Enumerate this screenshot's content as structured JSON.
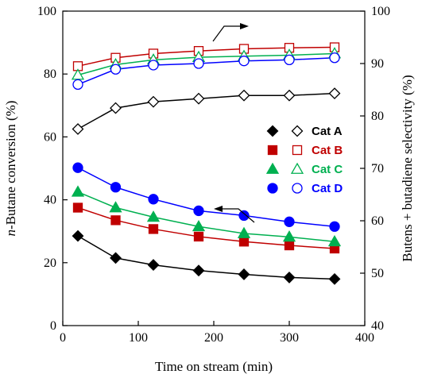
{
  "chart_data": {
    "type": "line",
    "x_axis": {
      "label": "Time on stream (min)",
      "range": [
        0,
        400
      ],
      "ticks": [
        0,
        100,
        200,
        300,
        400
      ]
    },
    "y_left_axis": {
      "label_italic_prefix": "n",
      "label_rest": "-Butane conversion (%)",
      "range": [
        0,
        100
      ],
      "ticks": [
        0,
        20,
        40,
        60,
        80,
        100
      ]
    },
    "y_right_axis": {
      "label": "Butens + butadiene selectivity (%)",
      "range": [
        40,
        100
      ],
      "ticks": [
        40,
        50,
        60,
        70,
        80,
        90,
        100
      ]
    },
    "x": [
      20,
      70,
      120,
      180,
      240,
      300,
      360
    ],
    "conversion_series": [
      {
        "name": "Cat A",
        "color": "#000000",
        "marker": "diamond",
        "values": [
          28.5,
          21.5,
          19.3,
          17.5,
          16.3,
          15.3,
          14.8
        ]
      },
      {
        "name": "Cat B",
        "color": "#c00000",
        "marker": "square",
        "values": [
          37.5,
          33.5,
          30.7,
          28.3,
          26.7,
          25.5,
          24.5
        ]
      },
      {
        "name": "Cat C",
        "color": "#00b050",
        "marker": "triangle",
        "values": [
          42.5,
          37.5,
          34.5,
          31.5,
          29.3,
          28.2,
          26.7
        ]
      },
      {
        "name": "Cat D",
        "color": "#0000ff",
        "marker": "circle",
        "values": [
          50.2,
          44.0,
          40.2,
          36.5,
          35.0,
          33.0,
          31.5
        ]
      }
    ],
    "selectivity_series": [
      {
        "name": "Cat A",
        "color": "#000000",
        "marker": "diamond",
        "values": [
          77.5,
          81.5,
          82.7,
          83.3,
          83.9,
          83.9,
          84.3
        ]
      },
      {
        "name": "Cat B",
        "color": "#c00000",
        "marker": "square",
        "values": [
          89.5,
          91.1,
          91.9,
          92.4,
          92.8,
          93.0,
          93.1
        ]
      },
      {
        "name": "Cat C",
        "color": "#00b050",
        "marker": "triangle",
        "values": [
          87.8,
          89.8,
          90.7,
          91.2,
          91.4,
          91.6,
          91.9
        ]
      },
      {
        "name": "Cat D",
        "color": "#0000ff",
        "marker": "circle",
        "values": [
          86.0,
          88.9,
          89.7,
          90.0,
          90.5,
          90.7,
          91.1
        ]
      }
    ],
    "legend": [
      "Cat A",
      "Cat B",
      "Cat C",
      "Cat D"
    ],
    "legend_placement": "right-middle",
    "grid": false,
    "annotations": [
      "arrow pointing right to selectivity axis",
      "arrow pointing left to conversion axis"
    ]
  }
}
